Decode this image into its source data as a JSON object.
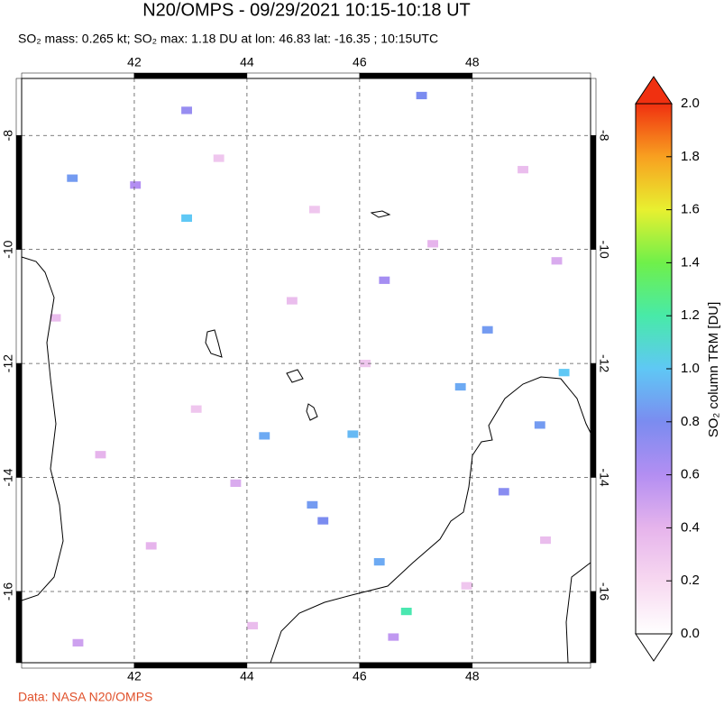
{
  "chart_data": {
    "type": "map",
    "title": "N20/OMPS - 09/29/2021 10:15-10:18 UT",
    "subtitle": "SO₂ mass: 0.265 kt; SO₂ max: 1.18 DU at lon: 46.83 lat: -16.35 ; 10:15UTC",
    "colorbar_label": "SO₂ column TRM [DU]",
    "source": "Data: NASA N20/OMPS",
    "xlim": [
      40,
      50.1
    ],
    "ylim": [
      -17.25,
      -7
    ],
    "xticks": [
      42,
      44,
      46,
      48
    ],
    "yticks": [
      -8,
      -10,
      -12,
      -14,
      -16
    ],
    "grid": true,
    "clim": [
      0,
      2
    ],
    "cticks": [
      {
        "value": 0,
        "label": "0.0"
      },
      0.2,
      0.4,
      0.6,
      0.8,
      {
        "value": 1,
        "label": "1.0"
      },
      1.2,
      1.4,
      1.6,
      1.8,
      {
        "value": 2,
        "label": "2.0"
      }
    ],
    "colorscale": [
      "#ffffff",
      "#f7d8f0",
      "#e6b4ec",
      "#b38ef2",
      "#7b8cf0",
      "#5fc8f5",
      "#48eaa8",
      "#6ff04a",
      "#e8f030",
      "#f8a020",
      "#f03010"
    ],
    "pixels": [
      {
        "lon": 40.9,
        "lat": -8.75,
        "value": 0.85
      },
      {
        "lon": 42.93,
        "lat": -9.45,
        "value": 1.0
      },
      {
        "lon": 46.83,
        "lat": -16.35,
        "value": 1.18
      },
      {
        "lon": 47.79,
        "lat": -12.41,
        "value": 0.9
      },
      {
        "lon": 44.31,
        "lat": -13.27,
        "value": 0.9
      },
      {
        "lon": 45.88,
        "lat": -13.24,
        "value": 0.95
      },
      {
        "lon": 45.16,
        "lat": -14.48,
        "value": 0.85
      },
      {
        "lon": 45.35,
        "lat": -14.76,
        "value": 0.8
      },
      {
        "lon": 46.35,
        "lat": -15.48,
        "value": 0.9
      },
      {
        "lon": 48.27,
        "lat": -11.41,
        "value": 0.85
      },
      {
        "lon": 49.2,
        "lat": -13.08,
        "value": 0.85
      },
      {
        "lon": 49.63,
        "lat": -12.16,
        "value": 1.0
      },
      {
        "lon": 48.56,
        "lat": -14.25,
        "value": 0.75
      },
      {
        "lon": 47.1,
        "lat": -7.3,
        "value": 0.8
      },
      {
        "lon": 42.93,
        "lat": -7.56,
        "value": 0.7
      },
      {
        "lon": 46.44,
        "lat": -10.54,
        "value": 0.65
      },
      {
        "lon": 42.02,
        "lat": -8.87,
        "value": 0.6
      },
      {
        "lon": 40.6,
        "lat": -11.2,
        "value": 0.35
      },
      {
        "lon": 41.4,
        "lat": -13.6,
        "value": 0.4
      },
      {
        "lon": 43.5,
        "lat": -8.4,
        "value": 0.3
      },
      {
        "lon": 44.8,
        "lat": -10.9,
        "value": 0.35
      },
      {
        "lon": 45.2,
        "lat": -9.3,
        "value": 0.3
      },
      {
        "lon": 47.3,
        "lat": -9.9,
        "value": 0.4
      },
      {
        "lon": 48.9,
        "lat": -8.6,
        "value": 0.35
      },
      {
        "lon": 49.5,
        "lat": -10.2,
        "value": 0.45
      },
      {
        "lon": 43.1,
        "lat": -12.8,
        "value": 0.3
      },
      {
        "lon": 42.3,
        "lat": -15.2,
        "value": 0.4
      },
      {
        "lon": 44.1,
        "lat": -16.6,
        "value": 0.35
      },
      {
        "lon": 41.0,
        "lat": -16.9,
        "value": 0.5
      },
      {
        "lon": 46.6,
        "lat": -16.8,
        "value": 0.55
      },
      {
        "lon": 47.9,
        "lat": -15.9,
        "value": 0.3
      },
      {
        "lon": 49.3,
        "lat": -15.1,
        "value": 0.35
      },
      {
        "lon": 43.8,
        "lat": -14.1,
        "value": 0.45
      },
      {
        "lon": 46.1,
        "lat": -12.0,
        "value": 0.3
      }
    ]
  }
}
